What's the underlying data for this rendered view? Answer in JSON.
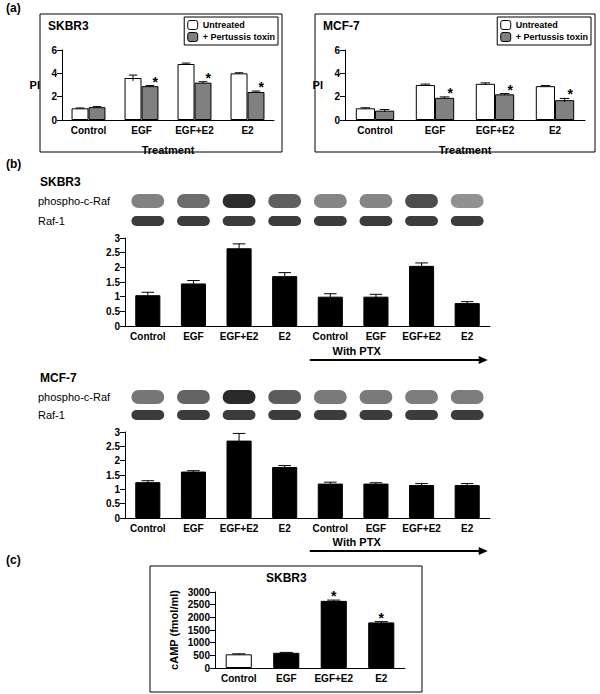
{
  "chart_data": [
    {
      "panel": "(a)",
      "type": "bar",
      "title": "SKBR3",
      "x_label": "Treatment",
      "y_label": "PI",
      "categories": [
        "Control",
        "EGF",
        "EGF+E2",
        "E2"
      ],
      "series": [
        {
          "name": "Untreated",
          "color": "#ffffff",
          "values": [
            1.0,
            3.6,
            4.8,
            4.0
          ],
          "errors": [
            0.03,
            0.25,
            0.08,
            0.05
          ]
        },
        {
          "name": "+ Pertussis toxin",
          "color": "#808080",
          "values": [
            1.1,
            2.9,
            3.2,
            2.4
          ],
          "errors": [
            0.05,
            0.05,
            0.08,
            0.08
          ]
        }
      ],
      "ylim": [
        0,
        6
      ],
      "yticks": [
        0,
        2,
        4,
        6
      ],
      "grid": false,
      "legend": "upper right",
      "annotations": [
        {
          "text": "*",
          "series": "+ Pertussis toxin",
          "category": "EGF"
        },
        {
          "text": "*",
          "series": "+ Pertussis toxin",
          "category": "EGF+E2"
        },
        {
          "text": "*",
          "series": "+ Pertussis toxin",
          "category": "E2"
        }
      ]
    },
    {
      "type": "bar",
      "title": "MCF-7",
      "x_label": "Treatment",
      "y_label": "PI",
      "categories": [
        "Control",
        "EGF",
        "EGF+E2",
        "E2"
      ],
      "series": [
        {
          "name": "Untreated",
          "color": "#ffffff",
          "values": [
            1.0,
            3.0,
            3.1,
            2.9
          ],
          "errors": [
            0.05,
            0.08,
            0.08,
            0.05
          ]
        },
        {
          "name": "+ Pertussis toxin",
          "color": "#808080",
          "values": [
            0.8,
            1.9,
            2.2,
            1.7
          ],
          "errors": [
            0.1,
            0.08,
            0.06,
            0.15
          ]
        }
      ],
      "ylim": [
        0,
        6
      ],
      "yticks": [
        0,
        2,
        4,
        6
      ],
      "grid": false,
      "legend": "upper right",
      "annotations": [
        {
          "text": "*",
          "series": "+ Pertussis toxin",
          "category": "EGF"
        },
        {
          "text": "*",
          "series": "+ Pertussis toxin",
          "category": "EGF+E2"
        },
        {
          "text": "*",
          "series": "+ Pertussis toxin",
          "category": "E2"
        }
      ]
    },
    {
      "panel": "(b)",
      "type": "bar",
      "title": "SKBR3",
      "blot_rows": [
        "phospho-c-Raf",
        "Raf-1"
      ],
      "categories": [
        "Control",
        "EGF",
        "EGF+E2",
        "E2",
        "Control",
        "EGF",
        "EGF+E2",
        "E2"
      ],
      "values": [
        1.05,
        1.45,
        2.65,
        1.7,
        1.0,
        1.0,
        2.05,
        0.78
      ],
      "errors": [
        0.1,
        0.1,
        0.15,
        0.12,
        0.1,
        0.08,
        0.1,
        0.05
      ],
      "color": "#000000",
      "ylim": [
        0,
        3
      ],
      "yticks": [
        0,
        0.5,
        1,
        1.5,
        2,
        2.5,
        3
      ],
      "grid": false,
      "annotations": [
        {
          "text": "With PTX",
          "start": 4,
          "end": 7
        }
      ]
    },
    {
      "type": "bar",
      "title": "MCF-7",
      "blot_rows": [
        "phospho-c-Raf",
        "Raf-1"
      ],
      "categories": [
        "Control",
        "EGF",
        "EGF+E2",
        "E2",
        "Control",
        "EGF",
        "EGF+E2",
        "E2"
      ],
      "values": [
        1.25,
        1.62,
        2.7,
        1.78,
        1.2,
        1.2,
        1.15,
        1.15
      ],
      "errors": [
        0.05,
        0.03,
        0.25,
        0.05,
        0.05,
        0.03,
        0.05,
        0.05
      ],
      "color": "#000000",
      "ylim": [
        0,
        3
      ],
      "yticks": [
        0,
        0.5,
        1,
        1.5,
        2,
        2.5,
        3
      ],
      "grid": false,
      "annotations": [
        {
          "text": "With PTX",
          "start": 4,
          "end": 7
        }
      ]
    },
    {
      "panel": "(c)",
      "type": "bar",
      "title": "SKBR3",
      "y_label": "cAMP (fmol/ml)",
      "categories": [
        "Control",
        "EGF",
        "EGF+E2",
        "E2"
      ],
      "values": [
        540,
        600,
        2650,
        1800
      ],
      "errors": [
        20,
        15,
        30,
        30
      ],
      "colors": [
        "#ffffff",
        "#000000",
        "#000000",
        "#000000"
      ],
      "ylim": [
        0,
        3000
      ],
      "yticks": [
        0,
        500,
        1000,
        1500,
        2000,
        2500,
        3000
      ],
      "grid": false,
      "annotations": [
        {
          "text": "*",
          "category": "EGF+E2"
        },
        {
          "text": "*",
          "category": "E2"
        }
      ]
    }
  ]
}
